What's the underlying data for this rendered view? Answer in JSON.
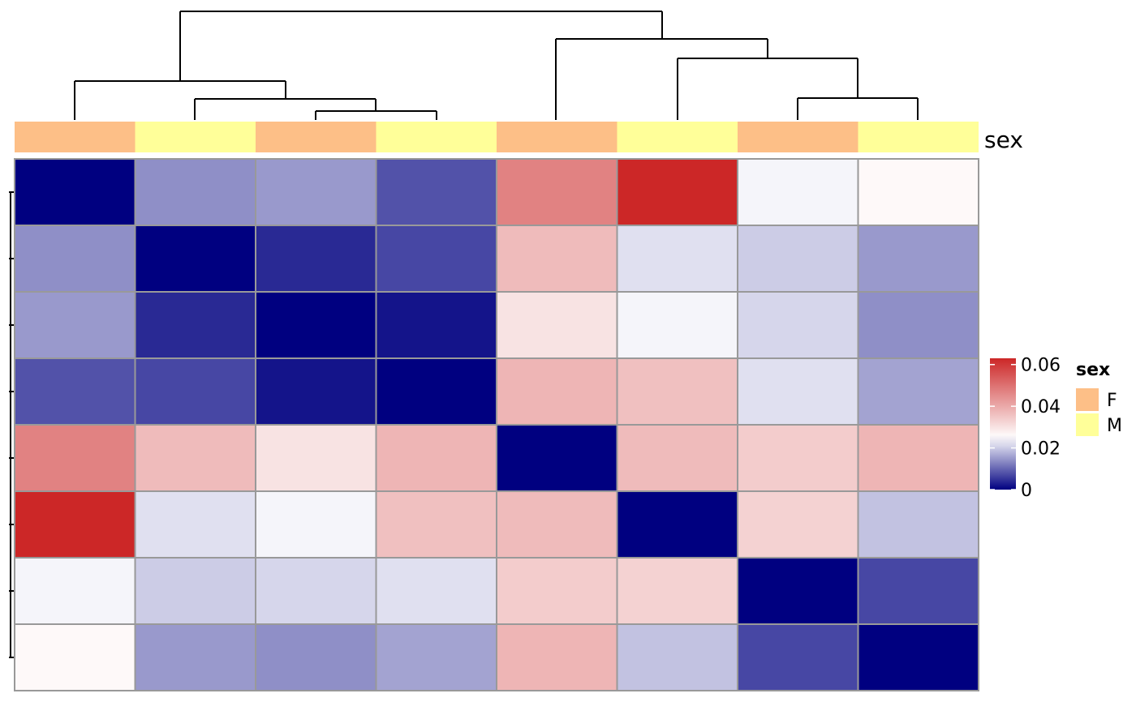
{
  "chart_data": {
    "type": "heatmap",
    "title": "",
    "xlabel": "",
    "ylabel": "",
    "color_scale": {
      "low": "#000080",
      "mid": "#ffffff",
      "high": "#cc2727",
      "min": 0,
      "mid_value": 0.025,
      "max": 0.063
    },
    "colorbar": {
      "ticks": [
        0,
        0.02,
        0.04,
        0.06
      ],
      "tick_labels": [
        "0",
        "0.02",
        "0.04",
        "0.06"
      ]
    },
    "values": [
      [
        0.0,
        0.014,
        0.015,
        0.008,
        0.047,
        0.063,
        0.024,
        0.026
      ],
      [
        0.014,
        0.0,
        0.004,
        0.007,
        0.037,
        0.022,
        0.02,
        0.015
      ],
      [
        0.015,
        0.004,
        0.0,
        0.002,
        0.03,
        0.024,
        0.021,
        0.014
      ],
      [
        0.008,
        0.007,
        0.002,
        0.0,
        0.038,
        0.036,
        0.022,
        0.016
      ],
      [
        0.047,
        0.037,
        0.03,
        0.038,
        0.0,
        0.037,
        0.034,
        0.038
      ],
      [
        0.063,
        0.022,
        0.024,
        0.036,
        0.037,
        0.0,
        0.033,
        0.019
      ],
      [
        0.024,
        0.02,
        0.021,
        0.022,
        0.034,
        0.033,
        0.0,
        0.007
      ],
      [
        0.026,
        0.015,
        0.014,
        0.016,
        0.038,
        0.019,
        0.007,
        0.0
      ]
    ],
    "annotation": {
      "label": "sex",
      "values": [
        "F",
        "M",
        "F",
        "M",
        "F",
        "M",
        "F",
        "M"
      ],
      "legend_title": "sex",
      "levels": [
        {
          "name": "F",
          "color": "#fdbf87"
        },
        {
          "name": "M",
          "color": "#ffff99"
        }
      ]
    },
    "grid": true,
    "legend_position": "right"
  }
}
